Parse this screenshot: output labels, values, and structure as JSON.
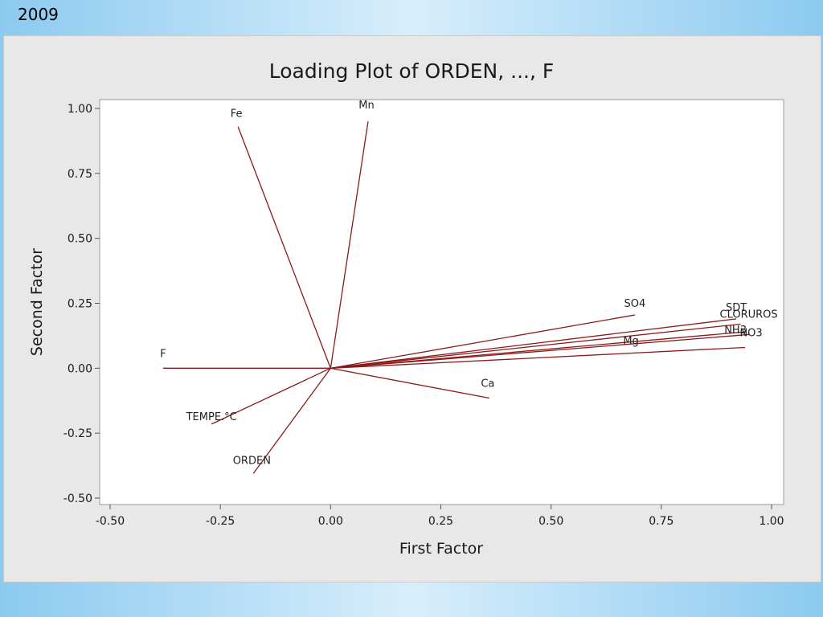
{
  "slide": {
    "label": "2009"
  },
  "chart_data": {
    "type": "scatter",
    "subtype": "loading-plot",
    "title": "Loading Plot of ORDEN, ..., F",
    "xlabel": "First Factor",
    "ylabel": "Second Factor",
    "xlim": [
      -0.5,
      1.0
    ],
    "ylim": [
      -0.5,
      1.0
    ],
    "xticks": [
      "-0.50",
      "-0.25",
      "0.00",
      "0.25",
      "0.50",
      "0.75",
      "1.00"
    ],
    "yticks": [
      "-0.50",
      "-0.25",
      "0.00",
      "0.25",
      "0.50",
      "0.75",
      "1.00"
    ],
    "grid": false,
    "line_color": "#8b1a1a",
    "vectors": [
      {
        "name": "Fe",
        "x": -0.21,
        "y": 0.93
      },
      {
        "name": "Mn",
        "x": 0.085,
        "y": 0.95
      },
      {
        "name": "SO4",
        "x": 0.69,
        "y": 0.205
      },
      {
        "name": "SDT",
        "x": 0.92,
        "y": 0.19
      },
      {
        "name": "CLORUROS",
        "x": 0.93,
        "y": 0.17
      },
      {
        "name": "NH3",
        "x": 0.94,
        "y": 0.14
      },
      {
        "name": "NO3",
        "x": 0.95,
        "y": 0.13
      },
      {
        "name": "Mg",
        "x": 0.94,
        "y": 0.08
      },
      {
        "name": "Ca",
        "x": 0.36,
        "y": -0.115
      },
      {
        "name": "F",
        "x": -0.38,
        "y": 0.0
      },
      {
        "name": "TEMPE.°C",
        "x": -0.27,
        "y": -0.215
      },
      {
        "name": "ORDEN",
        "x": -0.175,
        "y": -0.405
      }
    ]
  }
}
